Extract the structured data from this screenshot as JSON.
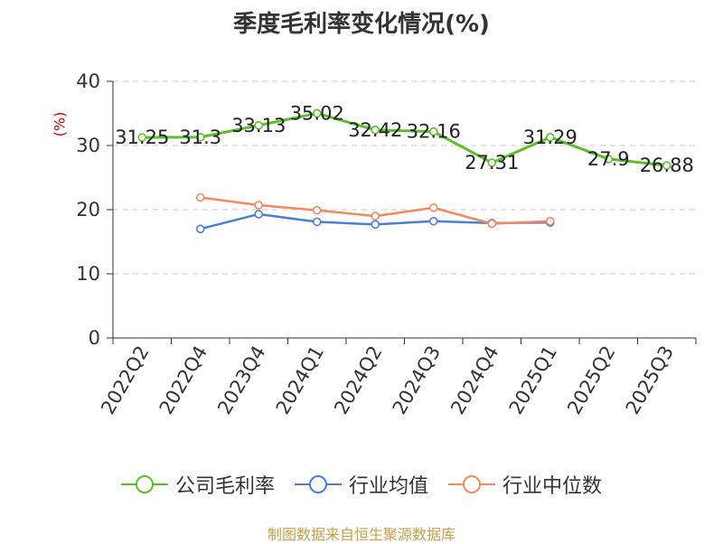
{
  "chart_data": {
    "type": "line",
    "title": "季度毛利率变化情况(%)",
    "ylabel": "(%)",
    "xlabel": "",
    "categories": [
      "2022Q2",
      "2022Q4",
      "2023Q4",
      "2024Q1",
      "2024Q2",
      "2024Q3",
      "2024Q4",
      "2025Q1",
      "2025Q2",
      "2025Q3"
    ],
    "ylim": [
      0,
      40
    ],
    "yticks": [
      0,
      10,
      20,
      30,
      40
    ],
    "grid": true,
    "legend_position": "bottom",
    "series": [
      {
        "name": "公司毛利率",
        "color": "#5cbf2a",
        "values": [
          31.25,
          31.3,
          33.13,
          35.02,
          32.42,
          32.16,
          27.31,
          31.29,
          27.9,
          26.88
        ],
        "labels": [
          "31.25",
          "31.3",
          "33.13",
          "35.02",
          "32.42",
          "32.16",
          "27.31",
          "31.29",
          "27.9",
          "26.88"
        ]
      },
      {
        "name": "行业均值",
        "color": "#4a7fd8",
        "values": [
          null,
          17.0,
          19.3,
          18.1,
          17.7,
          18.2,
          17.9,
          18.0,
          null,
          null
        ]
      },
      {
        "name": "行业中位数",
        "color": "#f4895f",
        "values": [
          null,
          21.9,
          20.7,
          19.9,
          19.0,
          20.3,
          17.8,
          18.2,
          null,
          null
        ]
      }
    ]
  },
  "source": "制图数据来自恒生聚源数据库"
}
